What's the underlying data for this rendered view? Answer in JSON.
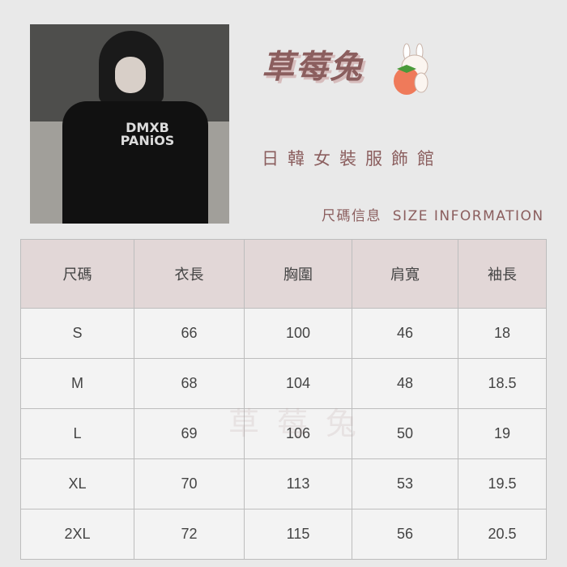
{
  "brand": {
    "name": "草莓兔",
    "tagline": "日韓女裝服飾館",
    "accent_color": "#8b5e5e"
  },
  "section_title": "尺碼信息  SIZE INFORMATION",
  "photo": {
    "shirt_print": "DMXB PANiOS"
  },
  "watermark": "草莓兔",
  "table": {
    "headers": [
      "尺碼",
      "衣長",
      "胸圍",
      "肩寬",
      "袖長"
    ],
    "rows": [
      [
        "S",
        "66",
        "100",
        "46",
        "18"
      ],
      [
        "M",
        "68",
        "104",
        "48",
        "18.5"
      ],
      [
        "L",
        "69",
        "106",
        "50",
        "19"
      ],
      [
        "XL",
        "70",
        "113",
        "53",
        "19.5"
      ],
      [
        "2XL",
        "72",
        "115",
        "56",
        "20.5"
      ]
    ]
  }
}
